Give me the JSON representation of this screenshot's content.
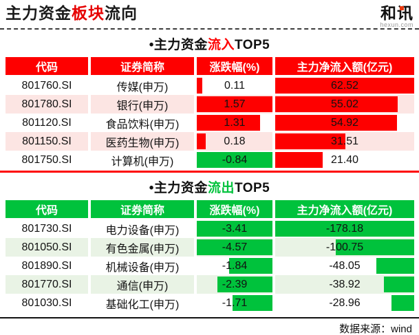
{
  "header": {
    "title_prefix": "主力资金",
    "title_highlight": "板块",
    "title_suffix": "流向",
    "logo_text": "和讯",
    "logo_domain": "hexun.com"
  },
  "footer": {
    "source": "数据来源：wind"
  },
  "colors": {
    "red": "#fe0000",
    "green": "#00c23c",
    "pink_zebra": "#fce5e3",
    "green_zebra": "#e9f3e5"
  },
  "tables": [
    {
      "id": "inflow",
      "title_bullet": "•",
      "title_prefix": "主力资金",
      "title_highlight": "流入",
      "title_suffix": "TOP5",
      "highlight_color": "#fe0000",
      "header_bg": "#fe0000",
      "zebra_bg": "#fce5e3",
      "bottom_line": "red",
      "columns": [
        "代码",
        "证券简称",
        "涨跌幅(%)",
        "主力净流入额(亿元)"
      ],
      "rows": [
        {
          "code": "801760.SI",
          "name": "传媒(申万)",
          "change": "0.11",
          "net": "62.52",
          "change_bar": {
            "frac": 0.07,
            "color": "#fe0000",
            "align": "left"
          },
          "net_bar": {
            "frac": 1.0,
            "color": "#fe0000",
            "align": "left"
          }
        },
        {
          "code": "801780.SI",
          "name": "银行(申万)",
          "change": "1.57",
          "net": "55.02",
          "change_bar": {
            "frac": 1.0,
            "color": "#fe0000",
            "align": "left"
          },
          "net_bar": {
            "frac": 0.88,
            "color": "#fe0000",
            "align": "left"
          }
        },
        {
          "code": "801120.SI",
          "name": "食品饮料(申万)",
          "change": "1.31",
          "net": "54.92",
          "change_bar": {
            "frac": 0.835,
            "color": "#fe0000",
            "align": "left"
          },
          "net_bar": {
            "frac": 0.878,
            "color": "#fe0000",
            "align": "left"
          }
        },
        {
          "code": "801150.SI",
          "name": "医药生物(申万)",
          "change": "0.18",
          "net": "31.51",
          "change_bar": {
            "frac": 0.115,
            "color": "#fe0000",
            "align": "left"
          },
          "net_bar": {
            "frac": 0.504,
            "color": "#fe0000",
            "align": "left"
          }
        },
        {
          "code": "801750.SI",
          "name": "计算机(申万)",
          "change": "-0.84",
          "net": "21.40",
          "change_bar": {
            "frac": 1.0,
            "color": "#00c23c",
            "align": "left"
          },
          "net_bar": {
            "frac": 0.342,
            "color": "#fe0000",
            "align": "left"
          }
        }
      ]
    },
    {
      "id": "outflow",
      "title_bullet": "•",
      "title_prefix": "主力资金",
      "title_highlight": "流出",
      "title_suffix": "TOP5",
      "highlight_color": "#00c23c",
      "header_bg": "#00c23c",
      "zebra_bg": "#e9f3e5",
      "bottom_line": "black",
      "columns": [
        "代码",
        "证券简称",
        "涨跌幅(%)",
        "主力净流入额(亿元)"
      ],
      "rows": [
        {
          "code": "801730.SI",
          "name": "电力设备(申万)",
          "change": "-3.41",
          "net": "-178.18",
          "change_bar": {
            "frac": 1.0,
            "color": "#00c23c",
            "align": "right"
          },
          "net_bar": {
            "frac": 1.0,
            "color": "#00c23c",
            "align": "right"
          }
        },
        {
          "code": "801050.SI",
          "name": "有色金属(申万)",
          "change": "-4.57",
          "net": "-100.75",
          "change_bar": {
            "frac": 1.0,
            "color": "#00c23c",
            "align": "right"
          },
          "net_bar": {
            "frac": 0.565,
            "color": "#00c23c",
            "align": "right"
          }
        },
        {
          "code": "801890.SI",
          "name": "机械设备(申万)",
          "change": "-1.84",
          "net": "-48.05",
          "change_bar": {
            "frac": 0.57,
            "color": "#00c23c",
            "align": "right"
          },
          "net_bar": {
            "frac": 0.27,
            "color": "#00c23c",
            "align": "right"
          }
        },
        {
          "code": "801770.SI",
          "name": "通信(申万)",
          "change": "-2.39",
          "net": "-38.92",
          "change_bar": {
            "frac": 0.73,
            "color": "#00c23c",
            "align": "right"
          },
          "net_bar": {
            "frac": 0.218,
            "color": "#00c23c",
            "align": "right"
          }
        },
        {
          "code": "801030.SI",
          "name": "基础化工(申万)",
          "change": "-1.71",
          "net": "-28.96",
          "change_bar": {
            "frac": 0.53,
            "color": "#00c23c",
            "align": "right"
          },
          "net_bar": {
            "frac": 0.163,
            "color": "#00c23c",
            "align": "right"
          }
        }
      ]
    }
  ],
  "chart_data": [
    {
      "type": "table",
      "title": "主力资金流入TOP5",
      "columns": [
        "代码",
        "证券简称",
        "涨跌幅(%)",
        "主力净流入额(亿元)"
      ],
      "rows": [
        [
          "801760.SI",
          "传媒(申万)",
          0.11,
          62.52
        ],
        [
          "801780.SI",
          "银行(申万)",
          1.57,
          55.02
        ],
        [
          "801120.SI",
          "食品饮料(申万)",
          1.31,
          54.92
        ],
        [
          "801150.SI",
          "医药生物(申万)",
          0.18,
          31.51
        ],
        [
          "801750.SI",
          "计算机(申万)",
          -0.84,
          21.4
        ]
      ]
    },
    {
      "type": "table",
      "title": "主力资金流出TOP5",
      "columns": [
        "代码",
        "证券简称",
        "涨跌幅(%)",
        "主力净流入额(亿元)"
      ],
      "rows": [
        [
          "801730.SI",
          "电力设备(申万)",
          -3.41,
          -178.18
        ],
        [
          "801050.SI",
          "有色金属(申万)",
          -4.57,
          -100.75
        ],
        [
          "801890.SI",
          "机械设备(申万)",
          -1.84,
          -48.05
        ],
        [
          "801770.SI",
          "通信(申万)",
          -2.39,
          -38.92
        ],
        [
          "801030.SI",
          "基础化工(申万)",
          -1.71,
          -28.96
        ]
      ]
    }
  ]
}
